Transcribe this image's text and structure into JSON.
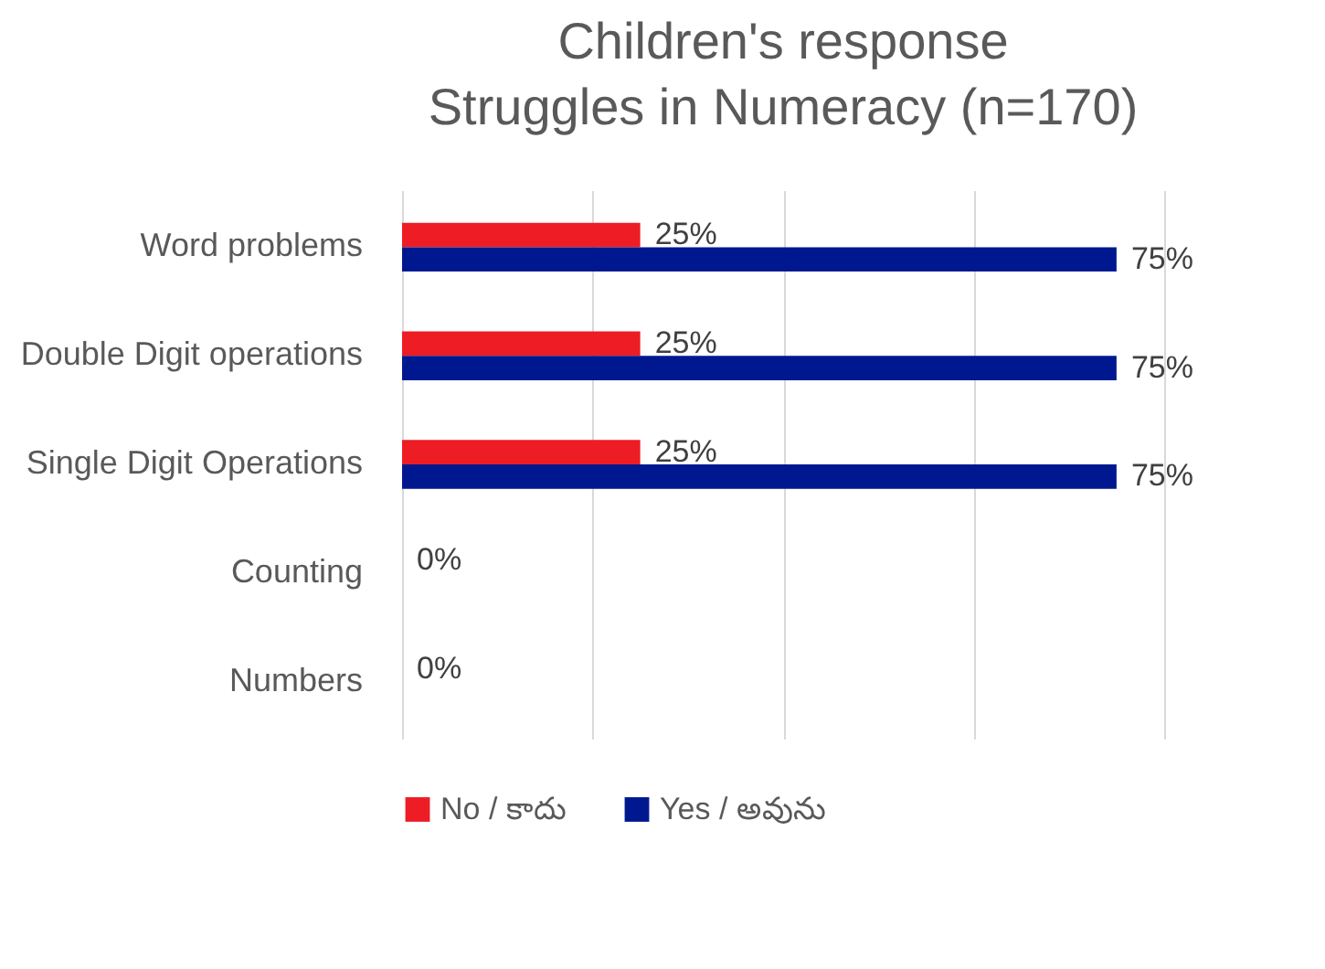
{
  "chart_data": {
    "type": "bar",
    "orientation": "horizontal",
    "title": "Children's response",
    "subtitle": "Struggles in Numeracy (n=170)",
    "categories": [
      "Word problems",
      "Double Digit operations",
      "Single Digit Operations",
      "Counting",
      "Numbers"
    ],
    "series": [
      {
        "name": "No / కాదు",
        "color": "#ee1c25",
        "values": [
          25,
          25,
          25,
          0,
          0
        ],
        "value_labels": [
          "25%",
          "25%",
          "25%",
          "0%",
          "0%"
        ]
      },
      {
        "name": "Yes / అవును",
        "color": "#00188f",
        "values": [
          75,
          75,
          75,
          null,
          null
        ],
        "value_labels": [
          "75%",
          "75%",
          "75%",
          null,
          null
        ]
      }
    ],
    "xlim": [
      0,
      80
    ],
    "xticks": [
      {
        "value": 0,
        "label": null
      },
      {
        "value": 20,
        "label": null
      },
      {
        "value": 40,
        "label": null
      },
      {
        "value": 60,
        "label": null
      },
      {
        "value": 80,
        "label": null
      }
    ],
    "tick_labels": "y",
    "grid": "x",
    "legend": "bottom"
  }
}
